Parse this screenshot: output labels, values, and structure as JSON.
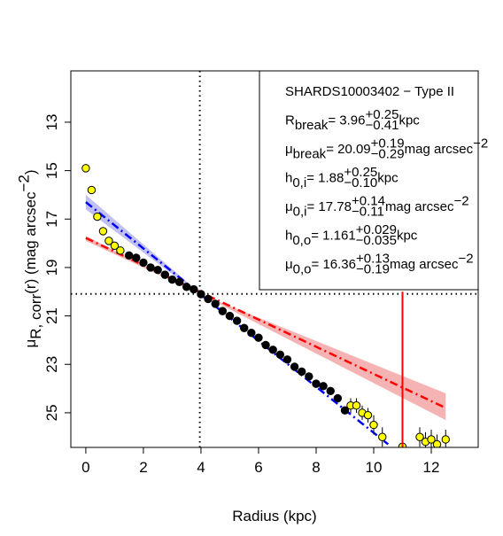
{
  "chart_data": {
    "type": "scatter",
    "xlabel": "Radius (kpc)",
    "ylabel": [
      {
        "text": "μ"
      },
      {
        "text": "R, corr",
        "pos": "sub"
      },
      {
        "text": "(r) (mag arcsec"
      },
      {
        "text": "−2",
        "pos": "sup"
      },
      {
        "text": ")"
      }
    ],
    "xlim": [
      -0.52,
      13.63
    ],
    "ylim": [
      26.43,
      10.88
    ],
    "xticks": [
      0,
      2,
      4,
      6,
      8,
      10,
      12
    ],
    "yticks": [
      13,
      15,
      17,
      19,
      21,
      23,
      25
    ],
    "series": [
      {
        "color": "#000000",
        "x": [
          1.5,
          1.75,
          2,
          2.25,
          2.5,
          2.75,
          3,
          3.25,
          3.5,
          3.75,
          4,
          4.25,
          4.5,
          4.75,
          5,
          5.25,
          5.5,
          5.75,
          6,
          6.25,
          6.5,
          6.75,
          7,
          7.25,
          7.5,
          7.75,
          8,
          8.25,
          8.5,
          8.75,
          9
        ],
        "values": [
          18.5,
          18.6,
          18.8,
          19.0,
          19.1,
          19.3,
          19.5,
          19.6,
          19.8,
          19.9,
          20.1,
          20.3,
          20.5,
          20.8,
          21.0,
          21.2,
          21.5,
          21.7,
          21.9,
          22.2,
          22.4,
          22.6,
          22.8,
          23.1,
          23.3,
          23.5,
          23.8,
          23.9,
          24.1,
          24.4,
          24.9
        ]
      },
      {
        "color": "#ffff00",
        "x": [
          0,
          0.2,
          0.4,
          0.6,
          0.8,
          1.0,
          1.2
        ],
        "values": [
          14.9,
          15.8,
          16.9,
          17.5,
          17.9,
          18.1,
          18.3
        ]
      },
      {
        "color": "#ffff00",
        "x": [
          9.2,
          9.4,
          9.6,
          9.8,
          10.0,
          10.3,
          11.0,
          11.6,
          11.8,
          12.0,
          12.2,
          12.5
        ],
        "values": [
          24.7,
          24.7,
          25.0,
          25.1,
          25.5,
          26.0,
          26.4,
          26.0,
          26.2,
          26.1,
          26.3,
          26.1
        ],
        "errors": [
          0.3,
          0.3,
          0.3,
          0.3,
          0.4,
          0.4,
          0.5,
          0.4,
          0.4,
          0.4,
          0.4,
          0.4
        ]
      }
    ],
    "bands": [
      {
        "color": "#f4a0a0",
        "x": [
          0,
          3.96,
          12.5
        ],
        "lower": [
          17.7,
          20.09,
          24.2
        ],
        "upper": [
          17.9,
          20.09,
          25.3
        ]
      },
      {
        "color": "#b0b0f0",
        "x": [
          0,
          3.96
        ],
        "lower": [
          16.0,
          20.05
        ],
        "upper": [
          16.6,
          20.13
        ]
      }
    ],
    "fits": [
      {
        "color": "#ff0000",
        "x": [
          0,
          12.5
        ],
        "values": [
          17.78,
          24.8
        ]
      },
      {
        "color": "#0000ff",
        "x": [
          0,
          3.96
        ],
        "values": [
          16.3,
          20.09
        ]
      },
      {
        "color": "#0000ff",
        "x": [
          3.96,
          10.5
        ],
        "values": [
          20.09,
          26.3
        ]
      }
    ],
    "break_x": 3.96,
    "break_y": 20.09,
    "red_vline": 11.0,
    "red_vline_top": 20.0,
    "legend": [
      [
        {
          "text": "SHARDS10003402  −  Type II"
        }
      ],
      [
        {
          "text": "R"
        },
        {
          "text": "break",
          "pos": "sub"
        },
        {
          "text": " = 3.96"
        },
        {
          "text": "+0.25",
          "pos": "sup"
        },
        {
          "text": "−0.41",
          "pos": "sub"
        },
        {
          "text": " kpc"
        }
      ],
      [
        {
          "text": "μ"
        },
        {
          "text": "break",
          "pos": "sub"
        },
        {
          "text": " = 20.09"
        },
        {
          "text": "+0.19",
          "pos": "sup"
        },
        {
          "text": "−0.29",
          "pos": "sub"
        },
        {
          "text": " mag arcsec"
        },
        {
          "text": "−2",
          "pos": "sup"
        }
      ],
      [
        {
          "text": "h"
        },
        {
          "text": "0,i",
          "pos": "sub"
        },
        {
          "text": " = 1.88"
        },
        {
          "text": "+0.25",
          "pos": "sup"
        },
        {
          "text": "−0.10",
          "pos": "sub"
        },
        {
          "text": " kpc"
        }
      ],
      [
        {
          "text": "μ"
        },
        {
          "text": "0,i",
          "pos": "sub"
        },
        {
          "text": " = 17.78"
        },
        {
          "text": "+0.14",
          "pos": "sup"
        },
        {
          "text": "−0.11",
          "pos": "sub"
        },
        {
          "text": " mag arcsec"
        },
        {
          "text": "−2",
          "pos": "sup"
        }
      ],
      [
        {
          "text": "h"
        },
        {
          "text": "0,o",
          "pos": "sub"
        },
        {
          "text": " = 1.161"
        },
        {
          "text": "+0.029",
          "pos": "sup"
        },
        {
          "text": "−0.035",
          "pos": "sub"
        },
        {
          "text": " kpc"
        }
      ],
      [
        {
          "text": "μ"
        },
        {
          "text": "0,o",
          "pos": "sub"
        },
        {
          "text": " = 16.36"
        },
        {
          "text": "+0.13",
          "pos": "sup"
        },
        {
          "text": "−0.19",
          "pos": "sub"
        },
        {
          "text": " mag arcsec"
        },
        {
          "text": "−2",
          "pos": "sup"
        }
      ]
    ]
  }
}
